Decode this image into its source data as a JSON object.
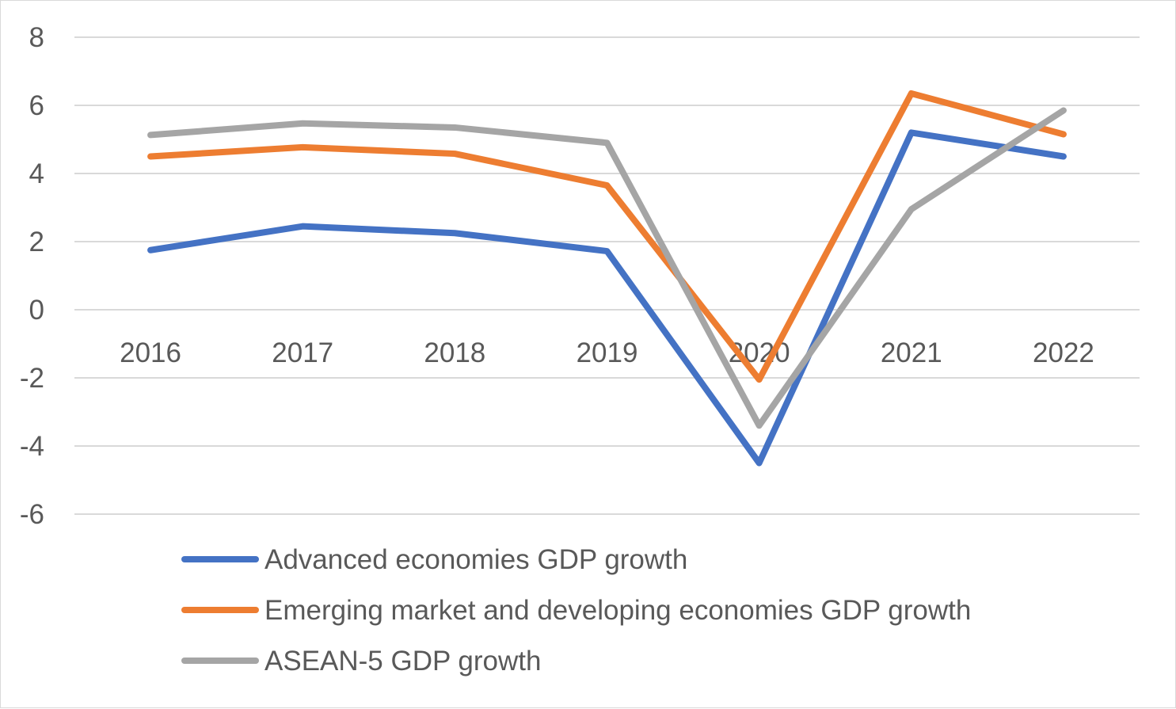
{
  "chart_data": {
    "type": "line",
    "title": "",
    "xlabel": "",
    "ylabel": "",
    "categories": [
      "2016",
      "2017",
      "2018",
      "2019",
      "2020",
      "2021",
      "2022"
    ],
    "ylim": [
      -6,
      8
    ],
    "yticks": [
      8,
      6,
      4,
      2,
      0,
      -2,
      -4,
      -6
    ],
    "grid": true,
    "legend": "bottom-left",
    "series": [
      {
        "name": "Advanced economies GDP growth",
        "color": "#4472c4",
        "values": [
          1.75,
          2.45,
          2.25,
          1.72,
          -4.5,
          5.2,
          4.5
        ]
      },
      {
        "name": "Emerging market and developing economies GDP growth",
        "color": "#ed7d31",
        "values": [
          4.5,
          4.77,
          4.58,
          3.65,
          -2.05,
          6.35,
          5.15
        ]
      },
      {
        "name": "ASEAN-5 GDP growth",
        "color": "#a5a5a5",
        "values": [
          5.13,
          5.47,
          5.35,
          4.9,
          -3.4,
          2.95,
          5.85
        ]
      }
    ]
  }
}
